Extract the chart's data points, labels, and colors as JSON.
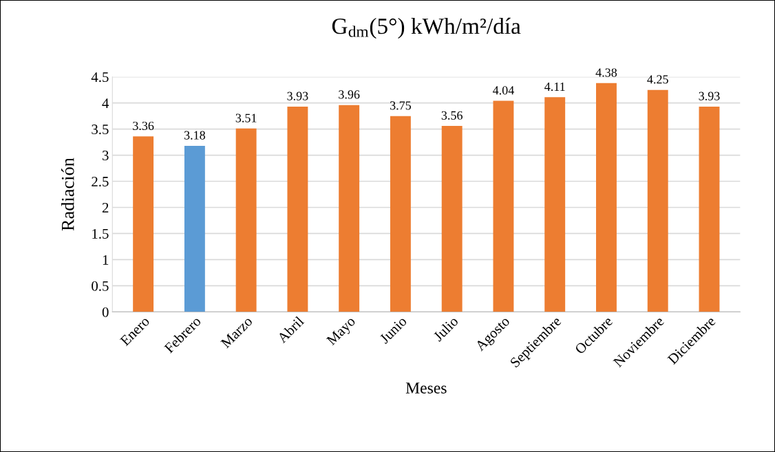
{
  "chart_data": {
    "type": "bar",
    "title": "G$_{dm}$(5°) kWh/m²/día",
    "xlabel": "Meses",
    "ylabel": "Radiación",
    "categories": [
      "Enero",
      "Febrero",
      "Marzo",
      "Abril",
      "Mayo",
      "Junio",
      "Julio",
      "Agosto",
      "Septiembre",
      "Octubre",
      "Noviembre",
      "Diciembre"
    ],
    "values": [
      3.36,
      3.18,
      3.51,
      3.93,
      3.96,
      3.75,
      3.56,
      4.04,
      4.11,
      4.38,
      4.25,
      3.93
    ],
    "colors": [
      "#ed7d31",
      "#5b9bd5",
      "#ed7d31",
      "#ed7d31",
      "#ed7d31",
      "#ed7d31",
      "#ed7d31",
      "#ed7d31",
      "#ed7d31",
      "#ed7d31",
      "#ed7d31",
      "#ed7d31"
    ],
    "ylim": [
      0,
      4.5
    ],
    "yticks": [
      0,
      0.5,
      1,
      1.5,
      2,
      2.5,
      3,
      3.5,
      4,
      4.5
    ],
    "grid": "y",
    "data_labels": true
  }
}
